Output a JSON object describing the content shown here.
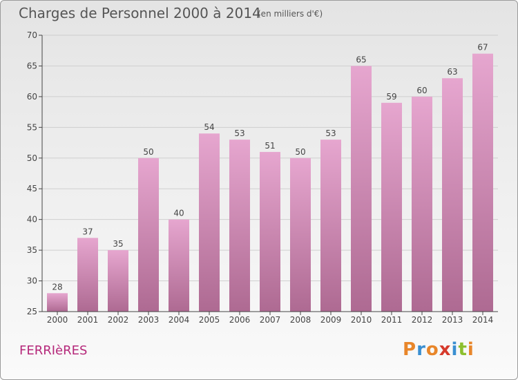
{
  "header": {
    "title": "Charges de Personnel 2000 à 2014",
    "subtitle": "(en milliers d'€)"
  },
  "footer": {
    "commune": "FERRIèRES",
    "logo": "Proxiti",
    "logo_colors": [
      "#e8862a",
      "#3a8fd1",
      "#e8862a",
      "#d63a2c",
      "#3a8fd1",
      "#8cbf2e",
      "#e8862a"
    ]
  },
  "colors": {
    "bar_top": "#e6a6cf",
    "bar_bottom": "#ae6a92",
    "axis": "#444444",
    "grid": "#cfcfcf"
  },
  "chart_data": {
    "type": "bar",
    "title": "Charges de Personnel 2000 à 2014",
    "subtitle": "(en milliers d'€)",
    "categories": [
      "2000",
      "2001",
      "2002",
      "2003",
      "2004",
      "2005",
      "2006",
      "2007",
      "2008",
      "2009",
      "2010",
      "2011",
      "2012",
      "2013",
      "2014"
    ],
    "values": [
      28,
      37,
      35,
      50,
      40,
      54,
      53,
      51,
      50,
      53,
      65,
      59,
      60,
      63,
      67
    ],
    "ylim": [
      25,
      70
    ],
    "yticks": [
      25,
      30,
      35,
      40,
      45,
      50,
      55,
      60,
      65,
      70
    ],
    "grid": true,
    "data_labels": true
  }
}
